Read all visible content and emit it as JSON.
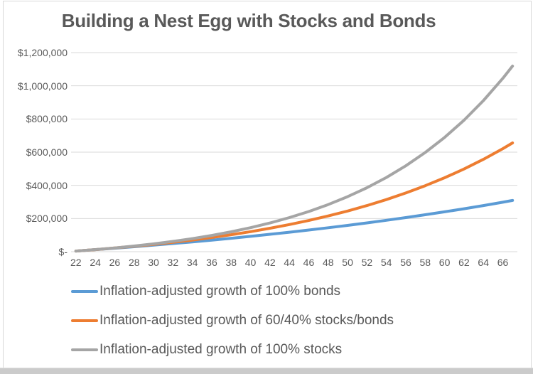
{
  "title": "Building a Nest Egg with Stocks and Bonds",
  "colors": {
    "bonds_line": "#5B9BD5",
    "balanced_line": "#ED7D31",
    "stocks_line": "#A5A5A5",
    "text": "#595959",
    "gridline": "#D9D9D9"
  },
  "chart_data": {
    "type": "line",
    "title": "Building a Nest Egg with Stocks and Bonds",
    "grid": true,
    "legend_position": "bottom",
    "x": [
      22,
      24,
      26,
      28,
      30,
      32,
      34,
      36,
      38,
      40,
      42,
      44,
      46,
      48,
      50,
      52,
      54,
      56,
      58,
      60,
      62,
      64,
      66,
      67
    ],
    "x_axis": {
      "tick_labels": [
        "22",
        "24",
        "26",
        "28",
        "30",
        "32",
        "34",
        "36",
        "38",
        "40",
        "42",
        "44",
        "46",
        "48",
        "50",
        "52",
        "54",
        "56",
        "58",
        "60",
        "62",
        "64",
        "66"
      ]
    },
    "y_axis": {
      "min": 0,
      "max": 1200000,
      "ticks": [
        {
          "value": 0,
          "label": "$-"
        },
        {
          "value": 200000,
          "label": "$200,000"
        },
        {
          "value": 400000,
          "label": "$400,000"
        },
        {
          "value": 600000,
          "label": "$600,000"
        },
        {
          "value": 800000,
          "label": "$800,000"
        },
        {
          "value": 1000000,
          "label": "$1,000,000"
        },
        {
          "value": 1200000,
          "label": "$1,200,000"
        }
      ]
    },
    "series": [
      {
        "key": "bonds",
        "name": "Inflation-adjusted growth of 100% bonds",
        "color": "#5B9BD5",
        "values": [
          4000,
          12300,
          20900,
          29900,
          39300,
          49100,
          59300,
          69900,
          81100,
          92700,
          104800,
          117400,
          130600,
          144400,
          158700,
          173700,
          189300,
          205700,
          222700,
          240400,
          259000,
          278300,
          298500,
          308900
        ]
      },
      {
        "key": "balanced",
        "name": "Inflation-adjusted growth of 60/40% stocks/bonds",
        "color": "#ED7D31",
        "values": [
          4000,
          12600,
          22100,
          32500,
          43900,
          56500,
          70400,
          85700,
          102500,
          121000,
          141300,
          163700,
          188300,
          215400,
          245200,
          278000,
          314100,
          353900,
          397600,
          445700,
          498600,
          556900,
          621000,
          655500
        ]
      },
      {
        "key": "stocks",
        "name": "Inflation-adjusted growth of 100% stocks",
        "color": "#A5A5A5",
        "values": [
          4000,
          12800,
          22900,
          34300,
          47300,
          62100,
          79000,
          98200,
          120100,
          145000,
          173300,
          205600,
          242300,
          284100,
          331700,
          385900,
          447600,
          517900,
          597900,
          688700,
          792500,
          910600,
          1044900,
          1118900
        ]
      }
    ]
  }
}
